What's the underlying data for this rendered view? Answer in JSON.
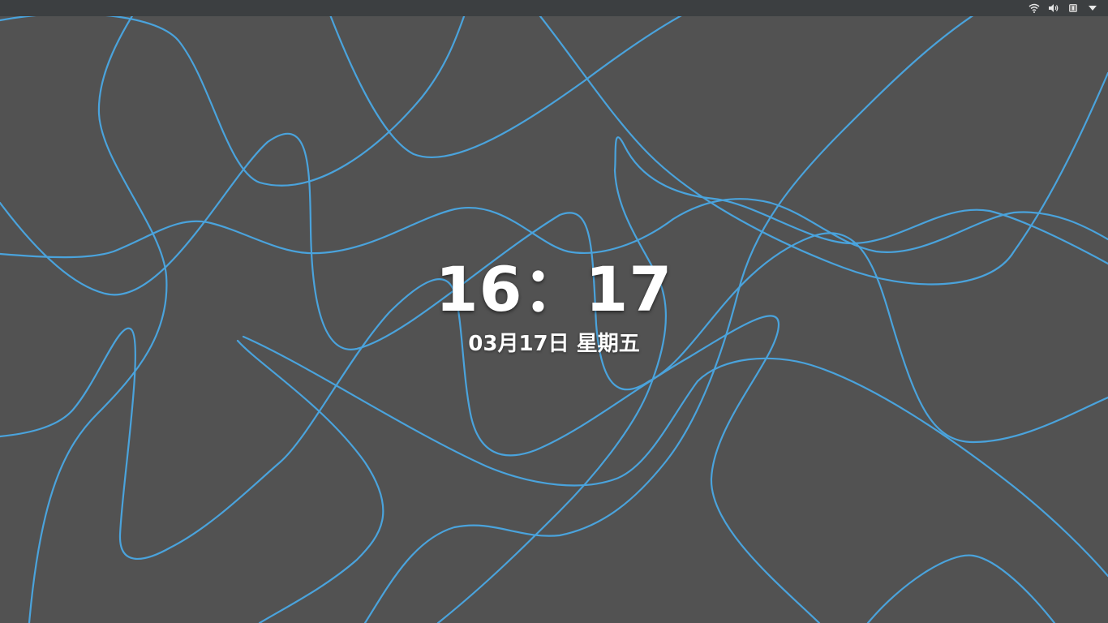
{
  "lock_screen": {
    "time": "16：17",
    "date": "03月17日 星期五"
  },
  "tray": {
    "icons": [
      "wifi-icon",
      "volume-icon",
      "battery-icon",
      "menu-arrow-icon"
    ]
  },
  "colors": {
    "background": "#525252",
    "topbar": "#3c3f41",
    "wallpaper_lines": "#4aa3dc",
    "text": "#ffffff"
  }
}
